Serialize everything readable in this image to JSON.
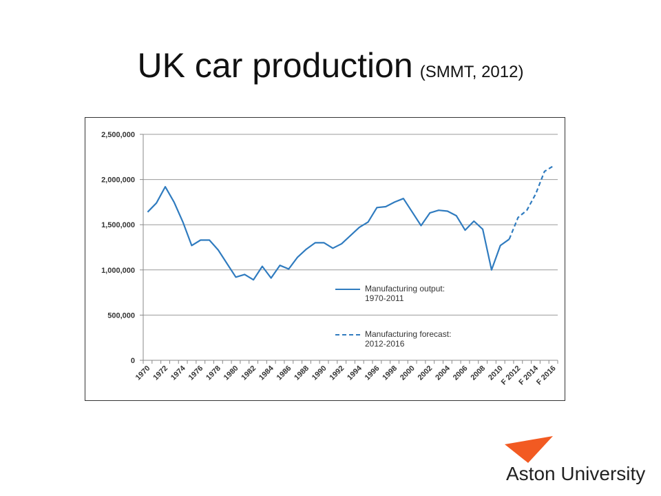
{
  "chart_data": {
    "type": "line",
    "title": "UK car production",
    "subtitle": "(SMMT, 2012)",
    "logo_text": "Aston University",
    "categories": [
      "1970",
      null,
      "1972",
      null,
      "1974",
      null,
      "1976",
      null,
      "1978",
      null,
      "1980",
      null,
      "1982",
      null,
      "1984",
      null,
      "1986",
      null,
      "1988",
      null,
      "1990",
      null,
      "1992",
      null,
      "1994",
      null,
      "1996",
      null,
      "1998",
      null,
      "2000",
      null,
      "2002",
      null,
      "2004",
      null,
      "2006",
      null,
      "2008",
      null,
      "2010",
      null,
      "F 2012",
      null,
      "F 2014",
      null,
      "F 2016"
    ],
    "series": [
      {
        "name": "Manufacturing output: 1970-2011",
        "color": "#2f7bbf",
        "dash": false,
        "values": [
          1640000,
          1740000,
          1920000,
          1750000,
          1530000,
          1270000,
          1330000,
          1330000,
          1220000,
          1070000,
          920000,
          950000,
          890000,
          1040000,
          910000,
          1050000,
          1010000,
          1140000,
          1230000,
          1300000,
          1300000,
          1240000,
          1290000,
          1380000,
          1470000,
          1530000,
          1690000,
          1700000,
          1750000,
          1790000,
          1640000,
          1490000,
          1630000,
          1660000,
          1650000,
          1600000,
          1440000,
          1540000,
          1450000,
          1000000,
          1270000,
          1340000,
          null,
          null,
          null,
          null,
          null
        ]
      },
      {
        "name": "Manufacturing forecast: 2012-2016",
        "color": "#2f7bbf",
        "dash": true,
        "values": [
          null,
          null,
          null,
          null,
          null,
          null,
          null,
          null,
          null,
          null,
          null,
          null,
          null,
          null,
          null,
          null,
          null,
          null,
          null,
          null,
          null,
          null,
          null,
          null,
          null,
          null,
          null,
          null,
          null,
          null,
          null,
          null,
          null,
          null,
          null,
          null,
          null,
          null,
          null,
          null,
          null,
          1340000,
          1580000,
          1660000,
          1840000,
          2090000,
          2150000
        ]
      }
    ],
    "ylim": [
      0,
      2500000
    ],
    "yticks": [
      0,
      {
        "value": 500000,
        "label": "500,000"
      },
      {
        "value": 1000000,
        "label": "1,000,000"
      },
      {
        "value": 1500000,
        "label": "1,500,000"
      },
      {
        "value": 2000000,
        "label": "2,000,000"
      },
      {
        "value": 2500000,
        "label": "2,500,000"
      }
    ],
    "grid": true
  }
}
